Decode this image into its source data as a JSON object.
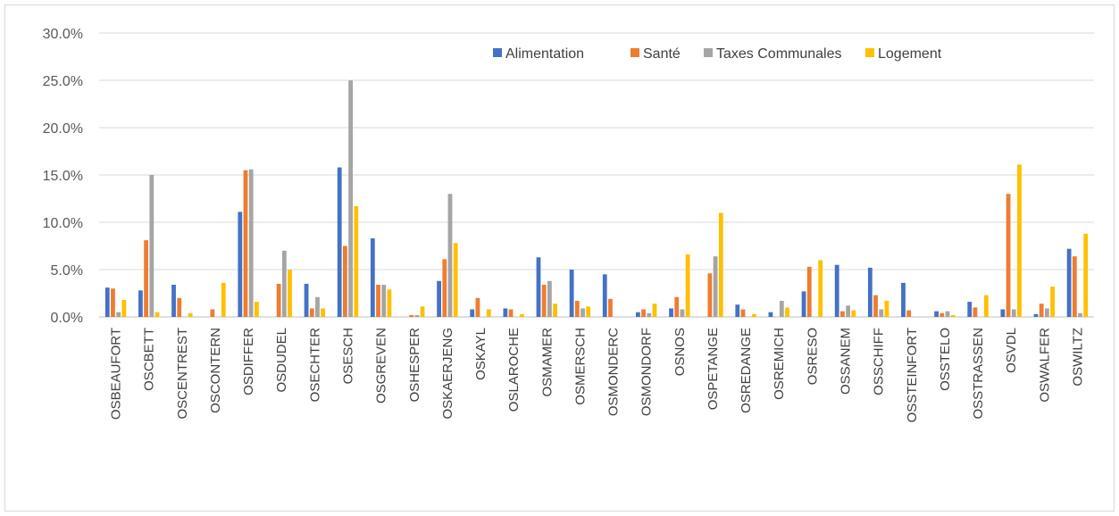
{
  "chart_data": {
    "type": "bar",
    "title": "",
    "xlabel": "",
    "ylabel": "",
    "ylim": [
      0,
      0.3
    ],
    "yticks": [
      0,
      0.05,
      0.1,
      0.15,
      0.2,
      0.25,
      0.3
    ],
    "ytick_labels": [
      "0.0%",
      "5.0%",
      "10.0%",
      "15.0%",
      "20.0%",
      "25.0%",
      "30.0%"
    ],
    "grid": true,
    "legend_position": "top-right",
    "categories": [
      "OSBEAUFORT",
      "OSCBETT",
      "OSCENTREST",
      "OSCONTERN",
      "OSDIFFER",
      "OSDUDEL",
      "OSECHTER",
      "OSESCH",
      "OSGREVEN",
      "OSHESPER",
      "OSKAERJENG",
      "OSKAYL",
      "OSLAROCHE",
      "OSMAMER",
      "OSMERSCH",
      "OSMONDERC",
      "OSMONDORF",
      "OSNOS",
      "OSPETANGE",
      "OSREDANGE",
      "OSREMICH",
      "OSRESO",
      "OSSANEM",
      "OSSCHIFF",
      "OSSTEINFORT",
      "OSSTELO",
      "OSSTRASSEN",
      "OSVDL",
      "OSWALFER",
      "OSWILTZ"
    ],
    "series": [
      {
        "name": "Alimentation",
        "color": "#4472c4",
        "values": [
          0.031,
          0.028,
          0.034,
          0.0,
          0.111,
          0.0,
          0.035,
          0.158,
          0.083,
          0.0,
          0.038,
          0.008,
          0.009,
          0.063,
          0.05,
          0.045,
          0.005,
          0.009,
          0.0,
          0.013,
          0.005,
          0.027,
          0.055,
          0.052,
          0.036,
          0.006,
          0.016,
          0.008,
          0.003,
          0.072
        ]
      },
      {
        "name": "Santé",
        "color": "#ed7d31",
        "values": [
          0.03,
          0.081,
          0.02,
          0.008,
          0.155,
          0.035,
          0.009,
          0.075,
          0.034,
          0.002,
          0.061,
          0.02,
          0.008,
          0.034,
          0.017,
          0.019,
          0.008,
          0.021,
          0.046,
          0.008,
          0.0,
          0.053,
          0.006,
          0.023,
          0.007,
          0.004,
          0.01,
          0.13,
          0.014,
          0.064
        ]
      },
      {
        "name": "Taxes Communales",
        "color": "#a5a5a5",
        "values": [
          0.005,
          0.15,
          0.0,
          0.0,
          0.156,
          0.07,
          0.021,
          0.25,
          0.034,
          0.002,
          0.13,
          0.0,
          0.0,
          0.038,
          0.009,
          0.0,
          0.004,
          0.008,
          0.064,
          0.0,
          0.017,
          0.0,
          0.012,
          0.008,
          0.0,
          0.006,
          0.0,
          0.008,
          0.009,
          0.004
        ]
      },
      {
        "name": "Logement",
        "color": "#ffc000",
        "values": [
          0.018,
          0.005,
          0.004,
          0.036,
          0.016,
          0.05,
          0.009,
          0.117,
          0.029,
          0.011,
          0.078,
          0.008,
          0.003,
          0.014,
          0.011,
          0.0,
          0.014,
          0.066,
          0.11,
          0.003,
          0.01,
          0.06,
          0.007,
          0.017,
          0.0,
          0.002,
          0.023,
          0.161,
          0.032,
          0.088
        ]
      }
    ]
  }
}
